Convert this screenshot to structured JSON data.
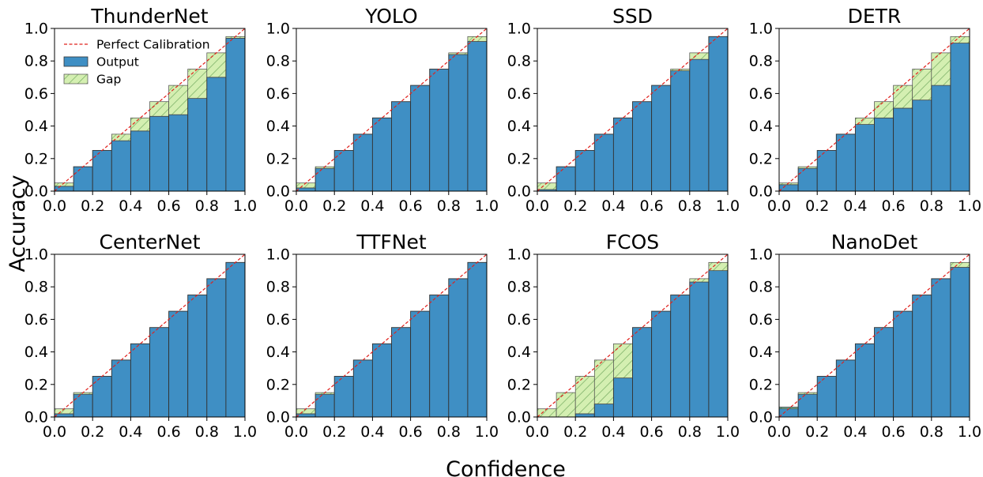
{
  "figure": {
    "xlabel": "Confidence",
    "ylabel": "Accuracy"
  },
  "legend": {
    "items": [
      {
        "key": "perfect",
        "label": "Perfect Calibration"
      },
      {
        "key": "output",
        "label": "Output"
      },
      {
        "key": "gap",
        "label": "Gap"
      }
    ]
  },
  "colors": {
    "output": "#3f8fc4",
    "gap_fill": "#d4efb1",
    "gap_hatch": "#7fb36a",
    "gap_overlap": "#6fb394",
    "perfect_line": "#e0201c",
    "bar_edge": "#333333"
  },
  "chart_data": [
    {
      "type": "bar",
      "title": "ThunderNet",
      "bins": [
        0.05,
        0.15,
        0.25,
        0.35,
        0.45,
        0.55,
        0.65,
        0.75,
        0.85,
        0.95
      ],
      "values": [
        0.03,
        0.15,
        0.25,
        0.31,
        0.37,
        0.46,
        0.47,
        0.57,
        0.7,
        0.94
      ],
      "xlim": [
        0,
        1
      ],
      "ylim": [
        0,
        1
      ],
      "xticks": [
        "0.0",
        "0.2",
        "0.4",
        "0.6",
        "0.8",
        "1.0"
      ],
      "yticks": [
        "0.0",
        "0.2",
        "0.4",
        "0.6",
        "0.8",
        "1.0"
      ],
      "legend": "top-left"
    },
    {
      "type": "bar",
      "title": "YOLO",
      "bins": [
        0.05,
        0.15,
        0.25,
        0.35,
        0.45,
        0.55,
        0.65,
        0.75,
        0.85,
        0.95
      ],
      "values": [
        0.02,
        0.14,
        0.25,
        0.35,
        0.45,
        0.55,
        0.65,
        0.75,
        0.84,
        0.92
      ],
      "xlim": [
        0,
        1
      ],
      "ylim": [
        0,
        1
      ],
      "xticks": [
        "0.0",
        "0.2",
        "0.4",
        "0.6",
        "0.8",
        "1.0"
      ],
      "yticks": [
        "0.0",
        "0.2",
        "0.4",
        "0.6",
        "0.8",
        "1.0"
      ]
    },
    {
      "type": "bar",
      "title": "SSD",
      "bins": [
        0.05,
        0.15,
        0.25,
        0.35,
        0.45,
        0.55,
        0.65,
        0.75,
        0.85,
        0.95
      ],
      "values": [
        0.01,
        0.15,
        0.25,
        0.35,
        0.45,
        0.55,
        0.65,
        0.74,
        0.81,
        0.95
      ],
      "xlim": [
        0,
        1
      ],
      "ylim": [
        0,
        1
      ],
      "xticks": [
        "0.0",
        "0.2",
        "0.4",
        "0.6",
        "0.8",
        "1.0"
      ],
      "yticks": [
        "0.0",
        "0.2",
        "0.4",
        "0.6",
        "0.8",
        "1.0"
      ]
    },
    {
      "type": "bar",
      "title": "DETR",
      "bins": [
        0.05,
        0.15,
        0.25,
        0.35,
        0.45,
        0.55,
        0.65,
        0.75,
        0.85,
        0.95
      ],
      "values": [
        0.04,
        0.14,
        0.25,
        0.35,
        0.41,
        0.45,
        0.51,
        0.56,
        0.65,
        0.91
      ],
      "xlim": [
        0,
        1
      ],
      "ylim": [
        0,
        1
      ],
      "xticks": [
        "0.0",
        "0.2",
        "0.4",
        "0.6",
        "0.8",
        "1.0"
      ],
      "yticks": [
        "0.0",
        "0.2",
        "0.4",
        "0.6",
        "0.8",
        "1.0"
      ]
    },
    {
      "type": "bar",
      "title": "CenterNet",
      "bins": [
        0.05,
        0.15,
        0.25,
        0.35,
        0.45,
        0.55,
        0.65,
        0.75,
        0.85,
        0.95
      ],
      "values": [
        0.02,
        0.14,
        0.25,
        0.35,
        0.45,
        0.55,
        0.65,
        0.75,
        0.85,
        0.95
      ],
      "xlim": [
        0,
        1
      ],
      "ylim": [
        0,
        1
      ],
      "xticks": [
        "0.0",
        "0.2",
        "0.4",
        "0.6",
        "0.8",
        "1.0"
      ],
      "yticks": [
        "0.0",
        "0.2",
        "0.4",
        "0.6",
        "0.8",
        "1.0"
      ]
    },
    {
      "type": "bar",
      "title": "TTFNet",
      "bins": [
        0.05,
        0.15,
        0.25,
        0.35,
        0.45,
        0.55,
        0.65,
        0.75,
        0.85,
        0.95
      ],
      "values": [
        0.02,
        0.14,
        0.25,
        0.35,
        0.45,
        0.55,
        0.65,
        0.75,
        0.85,
        0.95
      ],
      "xlim": [
        0,
        1
      ],
      "ylim": [
        0,
        1
      ],
      "xticks": [
        "0.0",
        "0.2",
        "0.4",
        "0.6",
        "0.8",
        "1.0"
      ],
      "yticks": [
        "0.0",
        "0.2",
        "0.4",
        "0.6",
        "0.8",
        "1.0"
      ]
    },
    {
      "type": "bar",
      "title": "FCOS",
      "bins": [
        0.05,
        0.15,
        0.25,
        0.35,
        0.45,
        0.55,
        0.65,
        0.75,
        0.85,
        0.95
      ],
      "values": [
        0.0,
        0.0,
        0.02,
        0.08,
        0.24,
        0.55,
        0.65,
        0.75,
        0.83,
        0.9
      ],
      "xlim": [
        0,
        1
      ],
      "ylim": [
        0,
        1
      ],
      "xticks": [
        "0.0",
        "0.2",
        "0.4",
        "0.6",
        "0.8",
        "1.0"
      ],
      "yticks": [
        "0.0",
        "0.2",
        "0.4",
        "0.6",
        "0.8",
        "1.0"
      ]
    },
    {
      "type": "bar",
      "title": "NanoDet",
      "bins": [
        0.05,
        0.15,
        0.25,
        0.35,
        0.45,
        0.55,
        0.65,
        0.75,
        0.85,
        0.95
      ],
      "values": [
        0.06,
        0.14,
        0.25,
        0.35,
        0.45,
        0.55,
        0.65,
        0.75,
        0.85,
        0.92
      ],
      "xlim": [
        0,
        1
      ],
      "ylim": [
        0,
        1
      ],
      "xticks": [
        "0.0",
        "0.2",
        "0.4",
        "0.6",
        "0.8",
        "1.0"
      ],
      "yticks": [
        "0.0",
        "0.2",
        "0.4",
        "0.6",
        "0.8",
        "1.0"
      ]
    }
  ]
}
